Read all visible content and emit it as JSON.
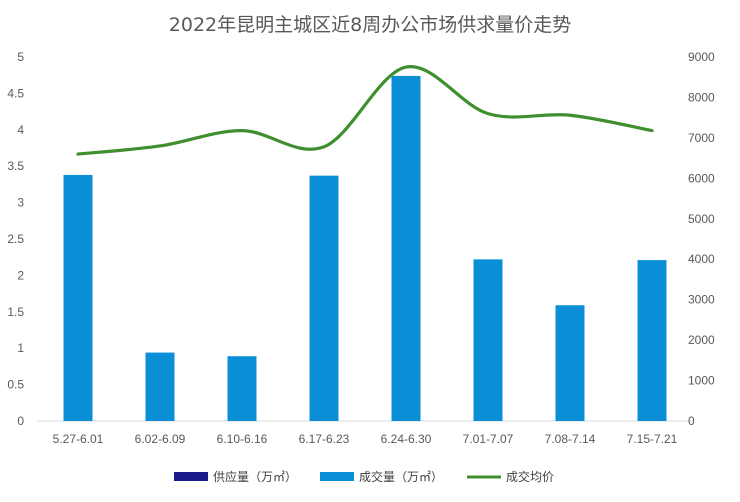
{
  "chart_data": {
    "type": "bar",
    "title": "2022年昆明主城区近8周办公市场供求量价走势",
    "categories": [
      "5.27-6.01",
      "6.02-6.09",
      "6.10-6.16",
      "6.17-6.23",
      "6.24-6.30",
      "7.01-7.07",
      "7.08-7.14",
      "7.15-7.21"
    ],
    "series": [
      {
        "name": "供应量（万㎡）",
        "type": "bar",
        "axis": "left",
        "color": "#1a1a8c",
        "values": [
          0,
          0,
          0,
          0,
          0,
          0,
          0,
          0
        ]
      },
      {
        "name": "成交量（万㎡）",
        "type": "bar",
        "axis": "left",
        "color": "#0a8fd6",
        "values": [
          3.38,
          0.94,
          0.89,
          3.37,
          4.74,
          2.22,
          1.59,
          2.21
        ]
      },
      {
        "name": "成交均价",
        "type": "line",
        "axis": "right",
        "color": "#3f8f2f",
        "smooth": true,
        "values": [
          6600,
          6800,
          7180,
          6780,
          8750,
          7600,
          7560,
          7180
        ]
      }
    ],
    "y_left": {
      "min": 0,
      "max": 5,
      "ticks": [
        "0",
        "0.5",
        "1",
        "1.5",
        "2",
        "2.5",
        "3",
        "3.5",
        "4",
        "4.5",
        "5"
      ]
    },
    "y_right": {
      "min": 0,
      "max": 9000,
      "ticks": [
        "0",
        "1000",
        "2000",
        "3000",
        "4000",
        "5000",
        "6000",
        "7000",
        "8000",
        "9000"
      ]
    },
    "grid": false,
    "legend_position": "bottom"
  }
}
